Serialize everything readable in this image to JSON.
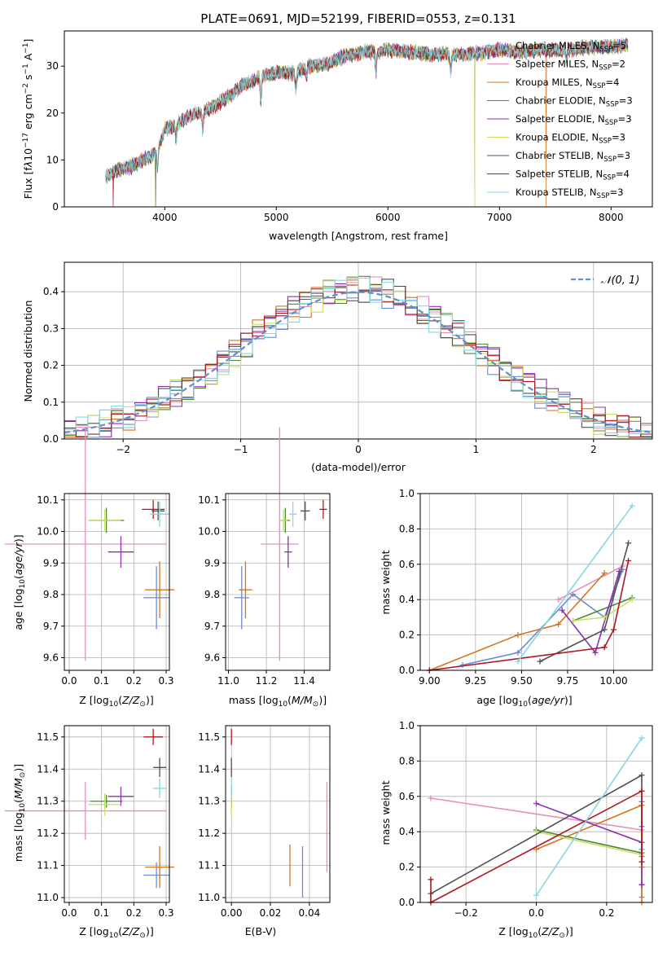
{
  "figure_title": "PLATE=0691, MJD=52199, FIBERID=0553, z=0.131",
  "models": [
    {
      "name": "Chabrier MILES",
      "nssp": "5",
      "color": "#6b8bd6"
    },
    {
      "name": "Salpeter MILES",
      "nssp": "2",
      "color": "#e68fbf"
    },
    {
      "name": "Kroupa MILES",
      "nssp": "4",
      "color": "#d4751f"
    },
    {
      "name": "Chabrier ELODIE",
      "nssp": "3",
      "color": "#4f8a3a"
    },
    {
      "name": "Salpeter ELODIE",
      "nssp": "3",
      "color": "#8e2fb0"
    },
    {
      "name": "Kroupa ELODIE",
      "nssp": "3",
      "color": "#c8e06a"
    },
    {
      "name": "Chabrier STELIB",
      "nssp": "3",
      "color": "#505050"
    },
    {
      "name": "Salpeter STELIB",
      "nssp": "4",
      "color": "#b01820"
    },
    {
      "name": "Kroupa STELIB",
      "nssp": "3",
      "color": "#86d8e0"
    }
  ],
  "chart_data": [
    {
      "id": "spectrum",
      "type": "line",
      "xlabel": "wavelength [Angstrom, rest frame]",
      "ylabel": "Flux [f_λ10^-17 erg cm^-2 s^-1 A^-1]",
      "xlim": [
        3100,
        8370
      ],
      "ylim": [
        0,
        37.5
      ],
      "xticks": [
        "4000",
        "5000",
        "6000",
        "7000",
        "8000"
      ],
      "yticks": [
        "0",
        "10",
        "20",
        "30"
      ],
      "continuum_knots": [
        [
          3470,
          6.5
        ],
        [
          3600,
          8.0
        ],
        [
          3700,
          8.5
        ],
        [
          3800,
          10.0
        ],
        [
          3900,
          11.0
        ],
        [
          3950,
          13.0
        ],
        [
          4000,
          16.5
        ],
        [
          4100,
          17.5
        ],
        [
          4200,
          19.0
        ],
        [
          4300,
          20.0
        ],
        [
          4350,
          20.5
        ],
        [
          4450,
          21.5
        ],
        [
          4600,
          24.0
        ],
        [
          4700,
          26.0
        ],
        [
          4800,
          27.0
        ],
        [
          4900,
          28.0
        ],
        [
          5000,
          28.5
        ],
        [
          5150,
          28.5
        ],
        [
          5300,
          30.0
        ],
        [
          5450,
          30.5
        ],
        [
          5600,
          32.0
        ],
        [
          5800,
          33.0
        ],
        [
          5900,
          33.0
        ],
        [
          6000,
          33.5
        ],
        [
          6200,
          33.0
        ],
        [
          6400,
          32.5
        ],
        [
          6500,
          32.5
        ],
        [
          6700,
          32.5
        ],
        [
          6900,
          33.0
        ],
        [
          7000,
          33.5
        ],
        [
          7200,
          33.0
        ],
        [
          7400,
          33.5
        ],
        [
          7600,
          33.5
        ],
        [
          7800,
          34.0
        ],
        [
          8000,
          34.0
        ],
        [
          8150,
          34.5
        ]
      ],
      "absorption_dips": [
        [
          3934,
          -4.0
        ],
        [
          4101,
          -3.0
        ],
        [
          4340,
          -4.0
        ],
        [
          4861,
          -5.0
        ],
        [
          5175,
          -4.0
        ],
        [
          5270,
          -2.0
        ],
        [
          5893,
          -4.0
        ],
        [
          6563,
          -3.5
        ],
        [
          7600,
          -2.0
        ]
      ]
    },
    {
      "id": "residuals",
      "type": "histogram",
      "xlabel": "(data-model)/error",
      "ylabel": "Normed distribution",
      "xlim": [
        -2.5,
        2.5
      ],
      "ylim": [
        0,
        0.48
      ],
      "xticks": [
        "−2",
        "−1",
        "0",
        "1",
        "2"
      ],
      "yticks": [
        "0.0",
        "0.1",
        "0.2",
        "0.3",
        "0.4"
      ],
      "bin_width": 0.1,
      "legend": "𝒩(0, 1)",
      "gaussian": {
        "mu": 0,
        "sigma": 1,
        "color": "#5b8fd6"
      }
    },
    {
      "id": "age_vs_Z",
      "type": "scatter_errorbars",
      "xlabel": "Z [log10(Z/Z⊙)]",
      "ylabel": "age  [log10(age/yr)]",
      "xlim": [
        -0.015,
        0.31
      ],
      "ylim": [
        9.56,
        10.12
      ],
      "xticks": [
        {
          "v": 0,
          "t": "0.0"
        },
        {
          "v": 0.1,
          "t": "0.1"
        },
        {
          "v": 0.2,
          "t": "0.2"
        },
        {
          "v": 0.3,
          "t": "0.3"
        }
      ],
      "yticks": [
        {
          "v": 9.6,
          "t": "9.6"
        },
        {
          "v": 9.7,
          "t": "9.7"
        },
        {
          "v": 9.8,
          "t": "9.8"
        },
        {
          "v": 9.9,
          "t": "9.9"
        },
        {
          "v": 10.0,
          "t": "10.0"
        },
        {
          "v": 10.1,
          "t": "10.1"
        }
      ],
      "points": [
        {
          "m": 0,
          "x": 0.27,
          "y": 9.79,
          "xe": 0.04,
          "ye": 0.1
        },
        {
          "m": 1,
          "x": 0.05,
          "y": 9.96,
          "xe": 0.25,
          "ye": 0.37
        },
        {
          "m": 2,
          "x": 0.28,
          "y": 9.815,
          "xe": 0.045,
          "ye": 0.09
        },
        {
          "m": 3,
          "x": 0.115,
          "y": 10.035,
          "xe": 0.055,
          "ye": 0.04
        },
        {
          "m": 4,
          "x": 0.16,
          "y": 9.935,
          "xe": 0.04,
          "ye": 0.05
        },
        {
          "m": 5,
          "x": 0.11,
          "y": 10.035,
          "xe": 0.05,
          "ye": 0.035
        },
        {
          "m": 6,
          "x": 0.275,
          "y": 10.065,
          "xe": 0.02,
          "ye": 0.03
        },
        {
          "m": 7,
          "x": 0.26,
          "y": 10.07,
          "xe": 0.035,
          "ye": 0.03
        },
        {
          "m": 8,
          "x": 0.28,
          "y": 10.055,
          "xe": 0.03,
          "ye": 0.04
        }
      ]
    },
    {
      "id": "age_vs_mass",
      "type": "scatter_errorbars",
      "xlabel": "mass [log10(M/M⊙)]",
      "ylabel": "",
      "xlim": [
        10.985,
        11.535
      ],
      "ylim": [
        9.56,
        10.12
      ],
      "xticks": [
        {
          "v": 11.0,
          "t": "11.0"
        },
        {
          "v": 11.2,
          "t": "11.2"
        },
        {
          "v": 11.4,
          "t": "11.4"
        }
      ],
      "yticks": [
        {
          "v": 9.6,
          "t": "9.6"
        },
        {
          "v": 9.7,
          "t": "9.7"
        },
        {
          "v": 9.8,
          "t": "9.8"
        },
        {
          "v": 9.9,
          "t": "9.9"
        },
        {
          "v": 10.0,
          "t": "10.0"
        },
        {
          "v": 10.1,
          "t": "10.1"
        }
      ],
      "points": [
        {
          "m": 0,
          "x": 11.07,
          "y": 9.79,
          "xe": 0.04,
          "ye": 0.1
        },
        {
          "m": 1,
          "x": 11.27,
          "y": 9.96,
          "xe": 0.1,
          "ye": 0.37
        },
        {
          "m": 2,
          "x": 11.09,
          "y": 9.815,
          "xe": 0.035,
          "ye": 0.09
        },
        {
          "m": 3,
          "x": 11.3,
          "y": 10.035,
          "xe": 0.025,
          "ye": 0.04
        },
        {
          "m": 4,
          "x": 11.315,
          "y": 9.935,
          "xe": 0.02,
          "ye": 0.05
        },
        {
          "m": 5,
          "x": 11.29,
          "y": 10.035,
          "xe": 0.02,
          "ye": 0.035
        },
        {
          "m": 6,
          "x": 11.405,
          "y": 10.065,
          "xe": 0.025,
          "ye": 0.03
        },
        {
          "m": 7,
          "x": 11.5,
          "y": 10.07,
          "xe": 0.02,
          "ye": 0.03
        },
        {
          "m": 8,
          "x": 11.34,
          "y": 10.055,
          "xe": 0.02,
          "ye": 0.04
        }
      ]
    },
    {
      "id": "mass_weight_vs_age",
      "type": "line",
      "xlabel": "age  [log10(age/yr)]",
      "ylabel": "mass weight",
      "xlim": [
        8.95,
        10.21
      ],
      "ylim": [
        0,
        1
      ],
      "xticks": [
        {
          "v": 9.0,
          "t": "9.00"
        },
        {
          "v": 9.25,
          "t": "9.25"
        },
        {
          "v": 9.5,
          "t": "9.50"
        },
        {
          "v": 9.75,
          "t": "9.75"
        },
        {
          "v": 10.0,
          "t": "10.00"
        }
      ],
      "yticks": [
        {
          "v": 0,
          "t": "0.0"
        },
        {
          "v": 0.2,
          "t": "0.2"
        },
        {
          "v": 0.4,
          "t": "0.4"
        },
        {
          "v": 0.6,
          "t": "0.6"
        },
        {
          "v": 0.8,
          "t": "0.8"
        },
        {
          "v": 1.0,
          "t": "1.0"
        }
      ],
      "series": [
        {
          "m": 0,
          "points": [
            [
              9.18,
              0.03
            ],
            [
              9.48,
              0.1
            ],
            [
              9.78,
              0.43
            ],
            [
              9.95,
              0.3
            ],
            [
              10.05,
              0.57
            ]
          ]
        },
        {
          "m": 1,
          "points": [
            [
              9.7,
              0.4
            ],
            [
              10.05,
              0.59
            ]
          ]
        },
        {
          "m": 2,
          "points": [
            [
              9.0,
              0.0
            ],
            [
              9.48,
              0.2
            ],
            [
              9.7,
              0.26
            ],
            [
              9.95,
              0.55
            ]
          ]
        },
        {
          "m": 3,
          "points": [
            [
              9.78,
              0.28
            ],
            [
              10.1,
              0.41
            ]
          ]
        },
        {
          "m": 4,
          "points": [
            [
              9.72,
              0.34
            ],
            [
              9.9,
              0.1
            ],
            [
              10.03,
              0.56
            ]
          ]
        },
        {
          "m": 5,
          "points": [
            [
              9.78,
              0.28
            ],
            [
              9.95,
              0.3
            ],
            [
              10.1,
              0.4
            ]
          ]
        },
        {
          "m": 6,
          "points": [
            [
              9.6,
              0.05
            ],
            [
              9.95,
              0.23
            ],
            [
              10.08,
              0.72
            ]
          ]
        },
        {
          "m": 7,
          "points": [
            [
              9.0,
              0.0
            ],
            [
              9.95,
              0.13
            ],
            [
              10.0,
              0.23
            ],
            [
              10.08,
              0.62
            ]
          ]
        },
        {
          "m": 8,
          "points": [
            [
              9.48,
              0.05
            ],
            [
              10.1,
              0.93
            ]
          ]
        }
      ]
    },
    {
      "id": "mass_vs_Z",
      "type": "scatter_errorbars",
      "xlabel": "Z [log10(Z/Z⊙)]",
      "ylabel": "mass [log10(M/M⊙)]",
      "xlim": [
        -0.015,
        0.31
      ],
      "ylim": [
        10.985,
        11.535
      ],
      "xticks": [
        {
          "v": 0,
          "t": "0.0"
        },
        {
          "v": 0.1,
          "t": "0.1"
        },
        {
          "v": 0.2,
          "t": "0.2"
        },
        {
          "v": 0.3,
          "t": "0.3"
        }
      ],
      "yticks": [
        {
          "v": 11.0,
          "t": "11.0"
        },
        {
          "v": 11.1,
          "t": "11.1"
        },
        {
          "v": 11.2,
          "t": "11.2"
        },
        {
          "v": 11.3,
          "t": "11.3"
        },
        {
          "v": 11.4,
          "t": "11.4"
        },
        {
          "v": 11.5,
          "t": "11.5"
        }
      ],
      "points": [
        {
          "m": 0,
          "x": 0.27,
          "y": 11.07,
          "xe": 0.04,
          "ye": 0.04
        },
        {
          "m": 1,
          "x": 0.05,
          "y": 11.27,
          "xe": 0.25,
          "ye": 0.09
        },
        {
          "m": 2,
          "x": 0.28,
          "y": 11.095,
          "xe": 0.045,
          "ye": 0.065
        },
        {
          "m": 3,
          "x": 0.115,
          "y": 11.3,
          "xe": 0.05,
          "ye": 0.02
        },
        {
          "m": 4,
          "x": 0.16,
          "y": 11.315,
          "xe": 0.04,
          "ye": 0.03
        },
        {
          "m": 5,
          "x": 0.11,
          "y": 11.29,
          "xe": 0.05,
          "ye": 0.035
        },
        {
          "m": 6,
          "x": 0.28,
          "y": 11.405,
          "xe": 0.02,
          "ye": 0.03
        },
        {
          "m": 7,
          "x": 0.26,
          "y": 11.5,
          "xe": 0.03,
          "ye": 0.025
        },
        {
          "m": 8,
          "x": 0.28,
          "y": 11.34,
          "xe": 0.02,
          "ye": 0.03
        }
      ]
    },
    {
      "id": "mass_vs_ebv",
      "type": "scatter_errorbars",
      "xlabel": "E(B-V)",
      "ylabel": "",
      "xlim": [
        -0.003,
        0.0505
      ],
      "ylim": [
        10.985,
        11.535
      ],
      "xticks": [
        {
          "v": 0,
          "t": "0.00"
        },
        {
          "v": 0.02,
          "t": "0.02"
        },
        {
          "v": 0.04,
          "t": "0.04"
        }
      ],
      "yticks": [
        {
          "v": 11.0,
          "t": "11.0"
        },
        {
          "v": 11.1,
          "t": "11.1"
        },
        {
          "v": 11.2,
          "t": "11.2"
        },
        {
          "v": 11.3,
          "t": "11.3"
        },
        {
          "v": 11.4,
          "t": "11.4"
        },
        {
          "v": 11.5,
          "t": "11.5"
        }
      ],
      "points": [
        {
          "m": 0,
          "x": 0.0365,
          "y": 11.08,
          "xe": 0,
          "ye": 0.08
        },
        {
          "m": 1,
          "x": 0.049,
          "y": 11.22,
          "xe": 0,
          "ye": 0.14
        },
        {
          "m": 2,
          "x": 0.03,
          "y": 11.1,
          "xe": 0,
          "ye": 0.065
        },
        {
          "m": 3,
          "x": 0,
          "y": 11.3,
          "xe": 0,
          "ye": 0.02
        },
        {
          "m": 4,
          "x": 0,
          "y": 11.315,
          "xe": 0,
          "ye": 0.03
        },
        {
          "m": 5,
          "x": 0,
          "y": 11.29,
          "xe": 0,
          "ye": 0.035
        },
        {
          "m": 6,
          "x": 0,
          "y": 11.405,
          "xe": 0,
          "ye": 0.03
        },
        {
          "m": 7,
          "x": 0,
          "y": 11.5,
          "xe": 0,
          "ye": 0.025
        },
        {
          "m": 8,
          "x": 0,
          "y": 11.34,
          "xe": 0,
          "ye": 0.03
        }
      ]
    },
    {
      "id": "mass_weight_vs_Z",
      "type": "line",
      "xlabel": "Z [log10(Z/Z⊙)]",
      "ylabel": "mass weight",
      "xlim": [
        -0.33,
        0.33
      ],
      "ylim": [
        0,
        1
      ],
      "xticks": [
        {
          "v": -0.2,
          "t": "−0.2"
        },
        {
          "v": 0,
          "t": "0.0"
        },
        {
          "v": 0.2,
          "t": "0.2"
        }
      ],
      "yticks": [
        {
          "v": 0,
          "t": "0.0"
        },
        {
          "v": 0.2,
          "t": "0.2"
        },
        {
          "v": 0.4,
          "t": "0.4"
        },
        {
          "v": 0.6,
          "t": "0.6"
        },
        {
          "v": 0.8,
          "t": "0.8"
        },
        {
          "v": 1.0,
          "t": "1.0"
        }
      ],
      "series": [
        {
          "m": 0,
          "points": [
            [
              0.3,
              0.03
            ],
            [
              0.3,
              0.1
            ],
            [
              0.3,
              0.43
            ],
            [
              0.3,
              0.3
            ],
            [
              0.3,
              0.57
            ]
          ]
        },
        {
          "m": 1,
          "points": [
            [
              -0.3,
              0.59
            ],
            [
              0.3,
              0.41
            ]
          ]
        },
        {
          "m": 2,
          "points": [
            [
              0.3,
              0.0
            ],
            [
              0.3,
              0.2
            ],
            [
              0.3,
              0.26
            ],
            [
              0.3,
              0.55
            ],
            [
              0.0,
              0.3
            ]
          ]
        },
        {
          "m": 3,
          "points": [
            [
              0,
              0.41
            ],
            [
              0.3,
              0.28
            ]
          ]
        },
        {
          "m": 4,
          "points": [
            [
              0,
              0.56
            ],
            [
              0.3,
              0.34
            ],
            [
              0.3,
              0.1
            ]
          ]
        },
        {
          "m": 5,
          "points": [
            [
              0,
              0.4
            ],
            [
              0.3,
              0.27
            ]
          ]
        },
        {
          "m": 6,
          "points": [
            [
              -0.3,
              0.05
            ],
            [
              0.3,
              0.72
            ],
            [
              0.3,
              0.23
            ]
          ]
        },
        {
          "m": 7,
          "points": [
            [
              -0.3,
              0.13
            ],
            [
              -0.3,
              0.0
            ],
            [
              0.3,
              0.63
            ],
            [
              0.3,
              0.23
            ]
          ]
        },
        {
          "m": 8,
          "points": [
            [
              0,
              0.04
            ],
            [
              0.3,
              0.93
            ]
          ]
        }
      ]
    }
  ]
}
